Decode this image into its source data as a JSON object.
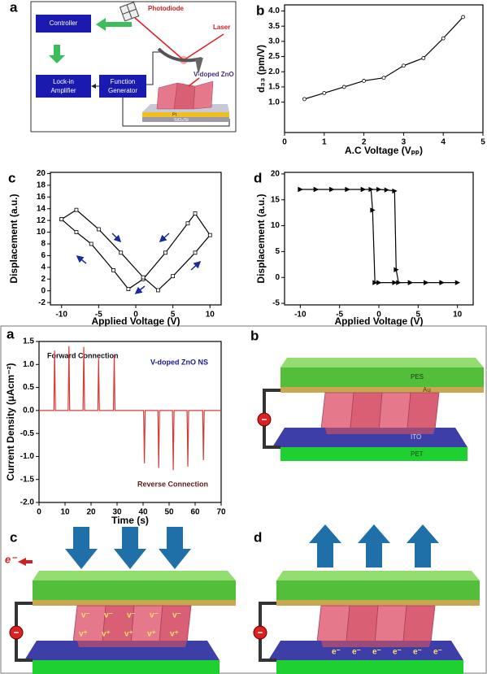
{
  "chart_data": [
    {
      "type": "line",
      "panel": "b",
      "xlabel": "A.C Voltage (Vₚₚ)",
      "ylabel": "d₃₃ (pm/V)",
      "x": [
        0.5,
        1,
        1.5,
        2,
        2.5,
        3,
        3.5,
        4,
        4.5
      ],
      "values": [
        1.1,
        1.3,
        1.5,
        1.7,
        1.8,
        2.2,
        2.45,
        3.1,
        3.8
      ],
      "color": "#000000",
      "marker": "circle",
      "xlim": [
        0,
        5
      ],
      "xticks": [
        0,
        1,
        2,
        3,
        4,
        5
      ],
      "ylim": [
        0,
        4.2
      ],
      "yticks": [
        {
          "value": 1,
          "label": "1.0"
        },
        1.5,
        {
          "value": 2,
          "label": "2.0"
        },
        2.5,
        {
          "value": 3,
          "label": "3.0"
        },
        3.5,
        {
          "value": 4,
          "label": "4.0"
        }
      ]
    },
    {
      "type": "line",
      "panel": "c",
      "xlabel": "Applied Voltage (V)",
      "ylabel": "Displacement (a.u.)",
      "x": [
        -10,
        -8,
        -6,
        -3,
        -1,
        1,
        4,
        7,
        8,
        10,
        8,
        5,
        3,
        1,
        -2,
        -5,
        -8,
        -10
      ],
      "values": [
        12.2,
        10,
        8,
        3.5,
        0.3,
        2,
        6.5,
        11.5,
        13.2,
        9.5,
        6.5,
        2.5,
        0.1,
        2.3,
        6.5,
        10.5,
        13.8,
        12.2
      ],
      "color": "#000000",
      "marker": "square",
      "xlim": [
        -11.5,
        11.5
      ],
      "xticks": [
        -10,
        -5,
        0,
        5,
        10
      ],
      "ylim": [
        -2.4,
        20.2
      ],
      "yticks": [
        -2,
        0,
        2,
        4,
        6,
        8,
        10,
        12,
        14,
        16,
        18,
        20
      ]
    },
    {
      "type": "line",
      "panel": "d",
      "xlabel": "Applied Voltage (V)",
      "ylabel": "Displacement (a.u.)",
      "x": [
        -10,
        -8,
        -6,
        -4,
        -2,
        0,
        1,
        2,
        2.2,
        2.5,
        4,
        6,
        8,
        10,
        8,
        6,
        4,
        2,
        0,
        -0.5,
        -0.8,
        -1,
        -2,
        -4,
        -6,
        -8,
        -10
      ],
      "values": [
        17,
        17,
        17,
        17,
        17,
        17,
        16.9,
        16.7,
        1.5,
        -1,
        -1,
        -1,
        -1,
        -1,
        -1,
        -1,
        -1,
        -1,
        -1,
        -1,
        13,
        17,
        17,
        17,
        17,
        17,
        17
      ],
      "color": "#000000",
      "marker": "triangle",
      "xlim": [
        -12,
        12
      ],
      "xticks": [
        -10,
        -5,
        0,
        5,
        10
      ],
      "ylim": [
        -5.3,
        20.3
      ],
      "yticks": [
        -5,
        0,
        5,
        10,
        15,
        20
      ]
    },
    {
      "type": "line",
      "panel": "a",
      "xlabel": "Time (s)",
      "ylabel": "Current Density (μAcm⁻²)",
      "annotations": [
        "Forward Connection",
        "V-doped ZnO NS",
        "Reverse Connection"
      ],
      "x": [
        0,
        5.7,
        6,
        6.3,
        11.2,
        11.5,
        11.8,
        16.9,
        17.2,
        17.5,
        22.6,
        22.9,
        23.2,
        28.6,
        28.9,
        29.2,
        40.2,
        40.5,
        40.8,
        45.7,
        46,
        46.3,
        51.3,
        51.6,
        51.9,
        56.9,
        57.2,
        57.5,
        62.9,
        63.2,
        63.5,
        70
      ],
      "values": [
        0,
        0,
        1.3,
        0,
        0,
        1.4,
        0,
        0,
        1.38,
        0,
        0,
        1.13,
        0,
        0,
        1.2,
        0,
        0,
        -1.15,
        0,
        0,
        -1.25,
        0,
        0,
        -1.3,
        0,
        0,
        -1.22,
        0,
        0,
        -1.08,
        0,
        0
      ],
      "color": "#d83a3a",
      "marker": "none",
      "xlim": [
        0,
        70
      ],
      "xticks": [
        0,
        10,
        20,
        30,
        40,
        50,
        60,
        70
      ],
      "ylim": [
        -2,
        1.5
      ],
      "yticks": [
        {
          "value": -2,
          "label": "-2.0"
        },
        -1.5,
        {
          "value": -1,
          "label": "-1.0"
        },
        -0.5,
        {
          "value": 0,
          "label": "0.0"
        },
        0.5,
        {
          "value": 1,
          "label": "1.0"
        },
        1.5
      ]
    }
  ],
  "diagram_top_a": {
    "panel": "a",
    "controller": "Controller",
    "photodiode": "Photodiode",
    "laser": "Laser",
    "lock_in": [
      "Lock-in",
      "Amplifier"
    ],
    "function_generator": [
      "Function",
      "Generator"
    ],
    "sample": "V-doped ZnO",
    "electrode": "Pt",
    "substrate": "SiO₂/Si"
  },
  "diagram_bottom_b": {
    "panel": "b",
    "layers": [
      "PES",
      "Au",
      "ITO",
      "PET"
    ]
  },
  "diagram_bottom_c": {
    "panel": "c",
    "electron": "e⁻",
    "top_charges": [
      "v⁻",
      "v⁻",
      "v⁻",
      "v⁻",
      "v⁻"
    ],
    "bottom_charges": [
      "v⁺",
      "v⁺",
      "v⁺",
      "v⁺",
      "v⁺"
    ]
  },
  "diagram_bottom_d": {
    "panel": "d",
    "electrons": [
      "e⁻",
      "e⁻",
      "e⁻",
      "e⁻",
      "e⁻",
      "e⁻"
    ]
  }
}
